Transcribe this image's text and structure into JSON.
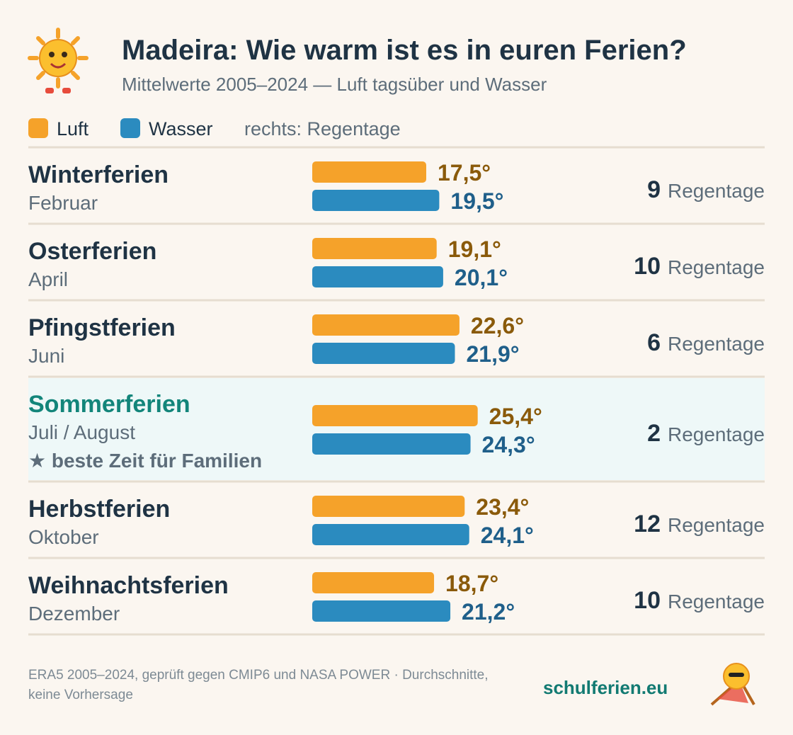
{
  "header": {
    "title": "Madeira: Wie warm ist es in euren Ferien?",
    "subtitle": "Mittelwerte 2005–2024 — Luft tagsüber und Wasser"
  },
  "chart_data": {
    "type": "bar",
    "categories": [
      "Winterferien",
      "Osterferien",
      "Pfingstferien",
      "Sommerferien",
      "Herbstferien",
      "Weihnachtsferien"
    ],
    "months": [
      "Februar",
      "April",
      "Juni",
      "Juli / August",
      "Oktober",
      "Dezember"
    ],
    "notes": [
      null,
      null,
      null,
      "★ beste Zeit für Familien",
      null,
      null
    ],
    "series": [
      {
        "name": "Luft",
        "color": "#f5a22a",
        "values": [
          17.5,
          19.1,
          22.6,
          25.4,
          23.4,
          18.7
        ],
        "value_labels": [
          "17,5°",
          "19,1°",
          "22,6°",
          "25,4°",
          "23,4°",
          "18,7°"
        ]
      },
      {
        "name": "Wasser",
        "color": "#2b8bbf",
        "values": [
          19.5,
          20.1,
          21.9,
          24.3,
          24.1,
          21.2
        ],
        "value_labels": [
          "19,5°",
          "20,1°",
          "21,9°",
          "24,3°",
          "24,1°",
          "21,2°"
        ]
      }
    ],
    "legend_note": "rechts: Regentage",
    "rain_days": [
      9,
      10,
      6,
      2,
      12,
      10
    ],
    "rain_label": "Regentage"
  },
  "footer": {
    "source": "ERA5 2005–2024, geprüft gegen CMIP6 und NASA POWER · Durchschnitte, keine Vorhersage",
    "brand": "schulferien.eu"
  }
}
